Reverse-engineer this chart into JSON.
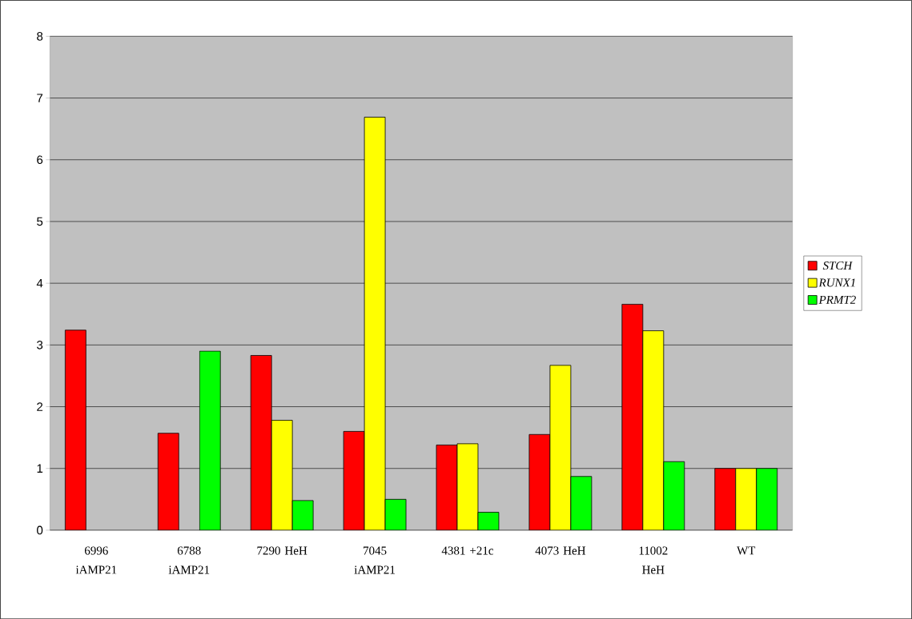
{
  "chart_data": {
    "type": "bar",
    "categories": [
      "6996 iAMP21",
      "6788 iAMP21",
      "7290 HeH",
      "7045 iAMP21",
      "4381 +21c",
      "4073 HeH",
      "11002 HeH",
      "WT"
    ],
    "series": [
      {
        "name": "STCH",
        "color": "#ff0000",
        "values": [
          3.24,
          1.57,
          2.83,
          1.6,
          1.38,
          1.55,
          3.66,
          1.0
        ]
      },
      {
        "name": "RUNX1",
        "color": "#ffff00",
        "values": [
          null,
          null,
          1.78,
          6.69,
          1.4,
          2.67,
          3.23,
          1.0
        ]
      },
      {
        "name": "PRMT2",
        "color": "#00ff00",
        "values": [
          null,
          2.9,
          0.48,
          0.5,
          0.29,
          0.87,
          1.11,
          1.0
        ]
      }
    ],
    "ylim": [
      0,
      8
    ],
    "yticks": [
      0,
      1,
      2,
      3,
      4,
      5,
      6,
      7,
      8
    ],
    "grid": "y",
    "legend": "right"
  }
}
